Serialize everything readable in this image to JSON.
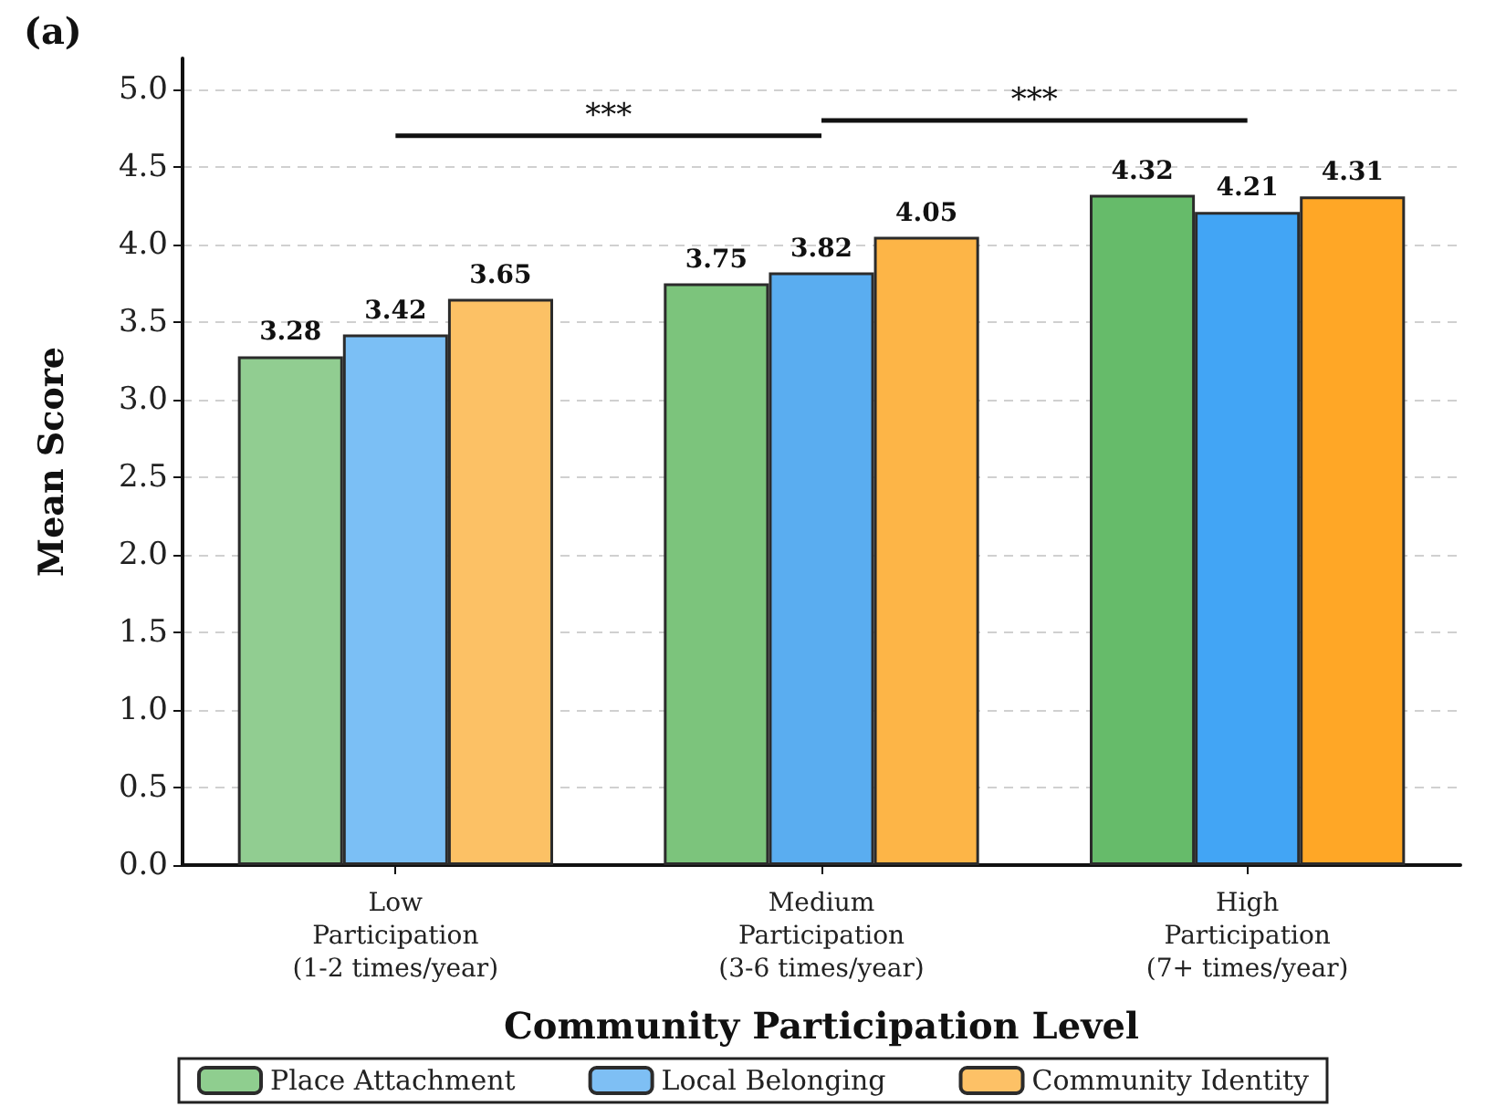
{
  "chart_data": {
    "type": "bar",
    "title": "(a)",
    "categories": [
      "Low\nParticipation\n(1-2 times/year)",
      "Medium\nParticipation\n(3-6 times/year)",
      "High\nParticipation\n(7+ times/year)"
    ],
    "series": [
      {
        "name": "Place Attachment",
        "color": "#8fce8f",
        "colors": [
          "#91cd91",
          "#7cc47c",
          "#66bb6a"
        ],
        "values": [
          3.28,
          3.75,
          4.32
        ]
      },
      {
        "name": "Local Belonging",
        "color": "#7ebff4",
        "colors": [
          "#7bbff5",
          "#5aadf0",
          "#42a5f5"
        ],
        "values": [
          3.42,
          3.82,
          4.21
        ]
      },
      {
        "name": "Community Identity",
        "color": "#fdc166",
        "colors": [
          "#fcc165",
          "#fdb547",
          "#ffa726"
        ],
        "values": [
          3.65,
          4.05,
          4.31
        ]
      }
    ],
    "xlabel": "Community Participation Level",
    "ylabel": "Mean Score",
    "ylim": [
      0,
      5.2
    ],
    "yticks": [
      "0.0",
      "0.5",
      "1.0",
      "1.5",
      "2.0",
      "2.5",
      "3.0",
      "3.5",
      "4.0",
      "4.5",
      "5.0"
    ],
    "annotations": [
      "***",
      "***"
    ],
    "data_labels": true,
    "grid": "y",
    "legend": "bottom"
  }
}
